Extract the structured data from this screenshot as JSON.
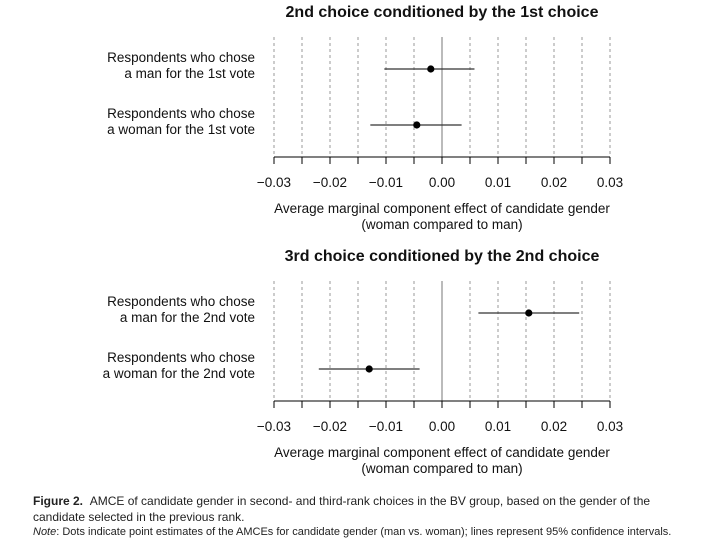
{
  "chart_data": [
    {
      "type": "scatter",
      "title": "2nd choice conditioned by the 1st choice",
      "categories": [
        [
          "Respondents who chose",
          "a man for the 1st vote"
        ],
        [
          "Respondents who chose",
          "a woman for the 1st vote"
        ]
      ],
      "estimates": [
        -0.002,
        -0.0045
      ],
      "ci_low": [
        -0.0103,
        -0.0128
      ],
      "ci_high": [
        0.0058,
        0.0035
      ],
      "xlim": [
        -0.03,
        0.03
      ],
      "xticks": [
        "−0.03",
        "−0.02",
        "−0.01",
        "0.00",
        "0.01",
        "0.02",
        "0.03"
      ],
      "xtick_values": [
        -0.03,
        -0.02,
        -0.01,
        0.0,
        0.01,
        0.02,
        0.03
      ],
      "xlabel": [
        "Average marginal component effect of candidate gender",
        "(woman compared to man)"
      ],
      "grid": "vertical dashed",
      "reference_line": 0
    },
    {
      "type": "scatter",
      "title": "3rd choice conditioned by the 2nd choice",
      "categories": [
        [
          "Respondents who chose",
          "a man for the 2nd vote"
        ],
        [
          "Respondents who chose",
          "a woman for the 2nd vote"
        ]
      ],
      "estimates": [
        0.0155,
        -0.013
      ],
      "ci_low": [
        0.0065,
        -0.022
      ],
      "ci_high": [
        0.0245,
        -0.004
      ],
      "xlim": [
        -0.03,
        0.03
      ],
      "xticks": [
        "−0.03",
        "−0.02",
        "−0.01",
        "0.00",
        "0.01",
        "0.02",
        "0.03"
      ],
      "xtick_values": [
        -0.03,
        -0.02,
        -0.01,
        0.0,
        0.01,
        0.02,
        0.03
      ],
      "xlabel": [
        "Average marginal component effect of candidate gender",
        "(woman compared to man)"
      ],
      "grid": "vertical dashed",
      "reference_line": 0
    }
  ],
  "caption": {
    "label": "Figure 2.",
    "text": "AMCE of candidate gender in second- and third-rank choices in the BV group, based on the gender of the candidate selected in the previous rank.",
    "note_label": "Note",
    "note_text": ": Dots indicate point estimates of the AMCEs for candidate gender (man vs. woman); lines represent 95% confidence intervals."
  }
}
